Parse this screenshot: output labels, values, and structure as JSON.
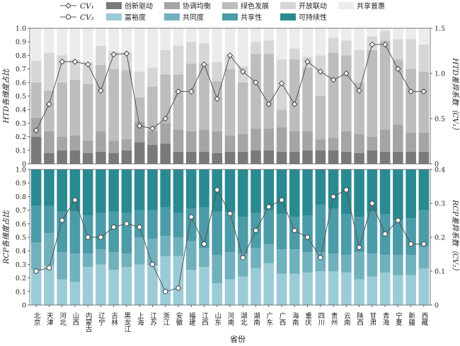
{
  "chart_data": [
    {
      "type": "bar",
      "stacked": true,
      "ylabel": "HTD各维度占比",
      "y2label": "HTD差异系数（CV₁）",
      "ylim": [
        0,
        1.0
      ],
      "y2lim": [
        0,
        1.5
      ],
      "yticks": [
        "0",
        "0.1",
        "0.2",
        "0.3",
        "0.4",
        "0.5",
        "0.6",
        "0.7",
        "0.8",
        "0.9",
        "1.0"
      ],
      "y2ticks": [
        "0",
        "0.5",
        "1.0",
        "1.5"
      ],
      "series": [
        {
          "name": "创新驱动",
          "color": "#7a7a7a",
          "values": [
            0.2,
            0.08,
            0.1,
            0.1,
            0.08,
            0.09,
            0.08,
            0.1,
            0.16,
            0.14,
            0.15,
            0.09,
            0.09,
            0.09,
            0.08,
            0.09,
            0.09,
            0.1,
            0.1,
            0.09,
            0.09,
            0.1,
            0.1,
            0.1,
            0.09,
            0.08,
            0.1,
            0.09,
            0.09,
            0.09,
            0.09
          ]
        },
        {
          "name": "协调均衡",
          "color": "#a5a5a5",
          "values": [
            0.14,
            0.16,
            0.1,
            0.11,
            0.09,
            0.15,
            0.09,
            0.08,
            0.15,
            0.1,
            0.15,
            0.16,
            0.15,
            0.16,
            0.16,
            0.12,
            0.13,
            0.16,
            0.16,
            0.18,
            0.15,
            0.14,
            0.08,
            0.09,
            0.15,
            0.14,
            0.1,
            0.16,
            0.2,
            0.14,
            0.14
          ]
        },
        {
          "name": "绿色发展",
          "color": "#bdbdbd",
          "values": [
            0.26,
            0.3,
            0.4,
            0.41,
            0.42,
            0.49,
            0.53,
            0.51,
            0.18,
            0.33,
            0.36,
            0.41,
            0.5,
            0.49,
            0.37,
            0.49,
            0.38,
            0.55,
            0.55,
            0.13,
            0.53,
            0.47,
            0.32,
            0.63,
            0.56,
            0.38,
            0.64,
            0.66,
            0.48,
            0.47,
            0.45
          ]
        },
        {
          "name": "开放联动",
          "color": "#d6d6d6",
          "values": [
            0.16,
            0.28,
            0.2,
            0.15,
            0.16,
            0.14,
            0.13,
            0.13,
            0.19,
            0.14,
            0.18,
            0.21,
            0.16,
            0.15,
            0.14,
            0.1,
            0.12,
            0.09,
            0.1,
            0.37,
            0.08,
            0.08,
            0.3,
            0.11,
            0.11,
            0.24,
            0.1,
            0.07,
            0.15,
            0.22,
            0.2
          ]
        },
        {
          "name": "共享普惠",
          "color": "#ececec",
          "values": [
            0.24,
            0.18,
            0.2,
            0.23,
            0.25,
            0.13,
            0.17,
            0.18,
            0.32,
            0.29,
            0.16,
            0.13,
            0.1,
            0.11,
            0.25,
            0.2,
            0.28,
            0.1,
            0.09,
            0.23,
            0.15,
            0.21,
            0.2,
            0.07,
            0.09,
            0.16,
            0.06,
            0.02,
            0.08,
            0.08,
            0.12
          ]
        }
      ],
      "line": {
        "name": "CV₁",
        "values": [
          0.37,
          0.66,
          1.13,
          1.13,
          1.1,
          0.81,
          1.21,
          1.22,
          0.42,
          0.39,
          0.5,
          0.8,
          0.8,
          1.1,
          0.72,
          1.2,
          1.02,
          0.9,
          0.66,
          0.89,
          0.66,
          1.13,
          1.02,
          0.93,
          1.0,
          0.81,
          1.32,
          1.32,
          1.05,
          0.8,
          0.8
        ]
      }
    },
    {
      "type": "bar",
      "stacked": true,
      "ylabel": "RCP各维度占比",
      "y2label": "RCP差异系数（CV₂）",
      "ylim": [
        0,
        1.0
      ],
      "y2lim": [
        0,
        0.4
      ],
      "yticks": [
        "0",
        "0.1",
        "0.2",
        "0.3",
        "0.4",
        "0.5",
        "0.6",
        "0.7",
        "0.8",
        "0.9",
        "1.0"
      ],
      "y2ticks": [
        "0",
        "0.1",
        "0.2",
        "0.3",
        "0.4"
      ],
      "series": [
        {
          "name": "富裕度",
          "color": "#9bcbd6",
          "values": [
            0.26,
            0.29,
            0.19,
            0.17,
            0.28,
            0.3,
            0.26,
            0.28,
            0.3,
            0.29,
            0.36,
            0.36,
            0.26,
            0.28,
            0.16,
            0.19,
            0.21,
            0.27,
            0.31,
            0.23,
            0.23,
            0.24,
            0.25,
            0.25,
            0.24,
            0.19,
            0.21,
            0.24,
            0.22,
            0.22,
            0.27
          ]
        },
        {
          "name": "共同度",
          "color": "#71b1be",
          "values": [
            0.2,
            0.24,
            0.2,
            0.21,
            0.1,
            0.11,
            0.13,
            0.1,
            0.2,
            0.2,
            0.15,
            0.14,
            0.21,
            0.14,
            0.21,
            0.2,
            0.17,
            0.15,
            0.14,
            0.18,
            0.18,
            0.15,
            0.14,
            0.13,
            0.13,
            0.2,
            0.17,
            0.13,
            0.15,
            0.15,
            0.16
          ]
        },
        {
          "name": "共享性",
          "color": "#4b9ca8",
          "values": [
            0.27,
            0.2,
            0.3,
            0.31,
            0.28,
            0.27,
            0.3,
            0.3,
            0.2,
            0.21,
            0.21,
            0.18,
            0.24,
            0.3,
            0.32,
            0.3,
            0.27,
            0.26,
            0.25,
            0.26,
            0.24,
            0.27,
            0.35,
            0.33,
            0.3,
            0.26,
            0.31,
            0.3,
            0.26,
            0.27,
            0.27
          ]
        },
        {
          "name": "可持续性",
          "color": "#2a8a92",
          "values": [
            0.27,
            0.27,
            0.31,
            0.31,
            0.34,
            0.32,
            0.31,
            0.32,
            0.3,
            0.3,
            0.28,
            0.32,
            0.29,
            0.28,
            0.31,
            0.31,
            0.35,
            0.32,
            0.3,
            0.33,
            0.35,
            0.34,
            0.26,
            0.29,
            0.33,
            0.35,
            0.31,
            0.33,
            0.37,
            0.36,
            0.3
          ]
        }
      ],
      "line": {
        "name": "CV₂",
        "values": [
          0.1,
          0.11,
          0.25,
          0.31,
          0.2,
          0.2,
          0.23,
          0.24,
          0.23,
          0.12,
          0.04,
          0.05,
          0.26,
          0.18,
          0.34,
          0.27,
          0.14,
          0.22,
          0.29,
          0.31,
          0.22,
          0.2,
          0.14,
          0.32,
          0.34,
          0.17,
          0.3,
          0.21,
          0.25,
          0.18,
          0.18
        ]
      }
    }
  ],
  "categories": [
    "北京",
    "天津",
    "河北",
    "山西",
    "内蒙古",
    "辽宁",
    "吉林",
    "黑龙江",
    "上海",
    "江苏",
    "浙江",
    "安徽",
    "福建",
    "江西",
    "山东",
    "河南",
    "湖北",
    "湖南",
    "广东",
    "广西",
    "海南",
    "重庆",
    "四川",
    "贵州",
    "云南",
    "陕西",
    "甘肃",
    "青海",
    "宁夏",
    "新疆",
    "西藏"
  ],
  "xlabel": "省份",
  "legend_line_markers": {
    "cv1": "CV₁",
    "cv2": "CV₂"
  }
}
